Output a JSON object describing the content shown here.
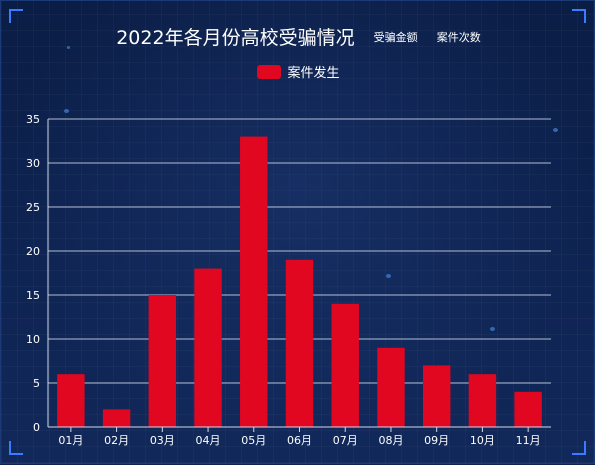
{
  "title": "2022年各月份高校受骗情况",
  "tabs": [
    "受骗金额",
    "案件次数"
  ],
  "chart_data": {
    "type": "bar",
    "categories": [
      "01月",
      "02月",
      "03月",
      "04月",
      "05月",
      "06月",
      "07月",
      "08月",
      "09月",
      "10月",
      "11月"
    ],
    "series": [
      {
        "name": "案件发生",
        "values": [
          6,
          2,
          15,
          18,
          33,
          19,
          14,
          9,
          7,
          6,
          4
        ]
      }
    ],
    "ylim": [
      0,
      35
    ],
    "yticks": [
      0,
      5,
      10,
      15,
      20,
      25,
      30,
      35
    ],
    "grid": true,
    "legend_position": "top-center",
    "colors": {
      "bar": "#e20721",
      "grid": "#cfd8ea",
      "text": "#ffffff",
      "background": "#11285a"
    }
  }
}
